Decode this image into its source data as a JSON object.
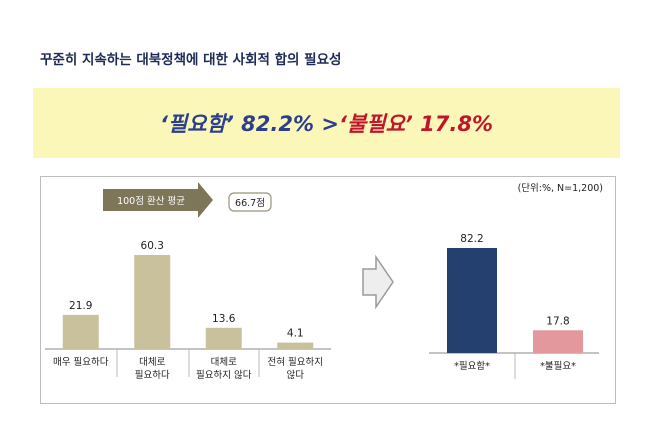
{
  "title": "꾸준히 지속하는 대북정책에 대한 사회적 합의 필요성",
  "headline": {
    "part1": "‘필요함’ 82.2% > ",
    "part2": "‘불필요’ 17.8%"
  },
  "unit_note": "(단위:%, N=1,200)",
  "avg_badge": {
    "label": "100점 환산 평균",
    "value": "66.7점"
  },
  "colors": {
    "bar_main": "#c9c19b",
    "bar_need": "#24406f",
    "bar_noneed": "#e2989d",
    "arrow_badge": "#7d7659"
  },
  "chart_data": [
    {
      "type": "bar",
      "categories": [
        "매우 필요하다",
        "대체로\n필요하다",
        "대체로\n필요하지 않다",
        "전혀 필요하지\n않다"
      ],
      "values": [
        21.9,
        60.3,
        13.6,
        4.1
      ],
      "value_labels": [
        "21.9",
        "60.3",
        "13.6",
        "4.1"
      ],
      "color": "#c9c19b"
    },
    {
      "type": "bar",
      "categories": [
        "*필요함*",
        "*불필요*"
      ],
      "values": [
        82.2,
        17.8
      ],
      "value_labels": [
        "82.2",
        "17.8"
      ],
      "colors": [
        "#24406f",
        "#e2989d"
      ]
    }
  ]
}
